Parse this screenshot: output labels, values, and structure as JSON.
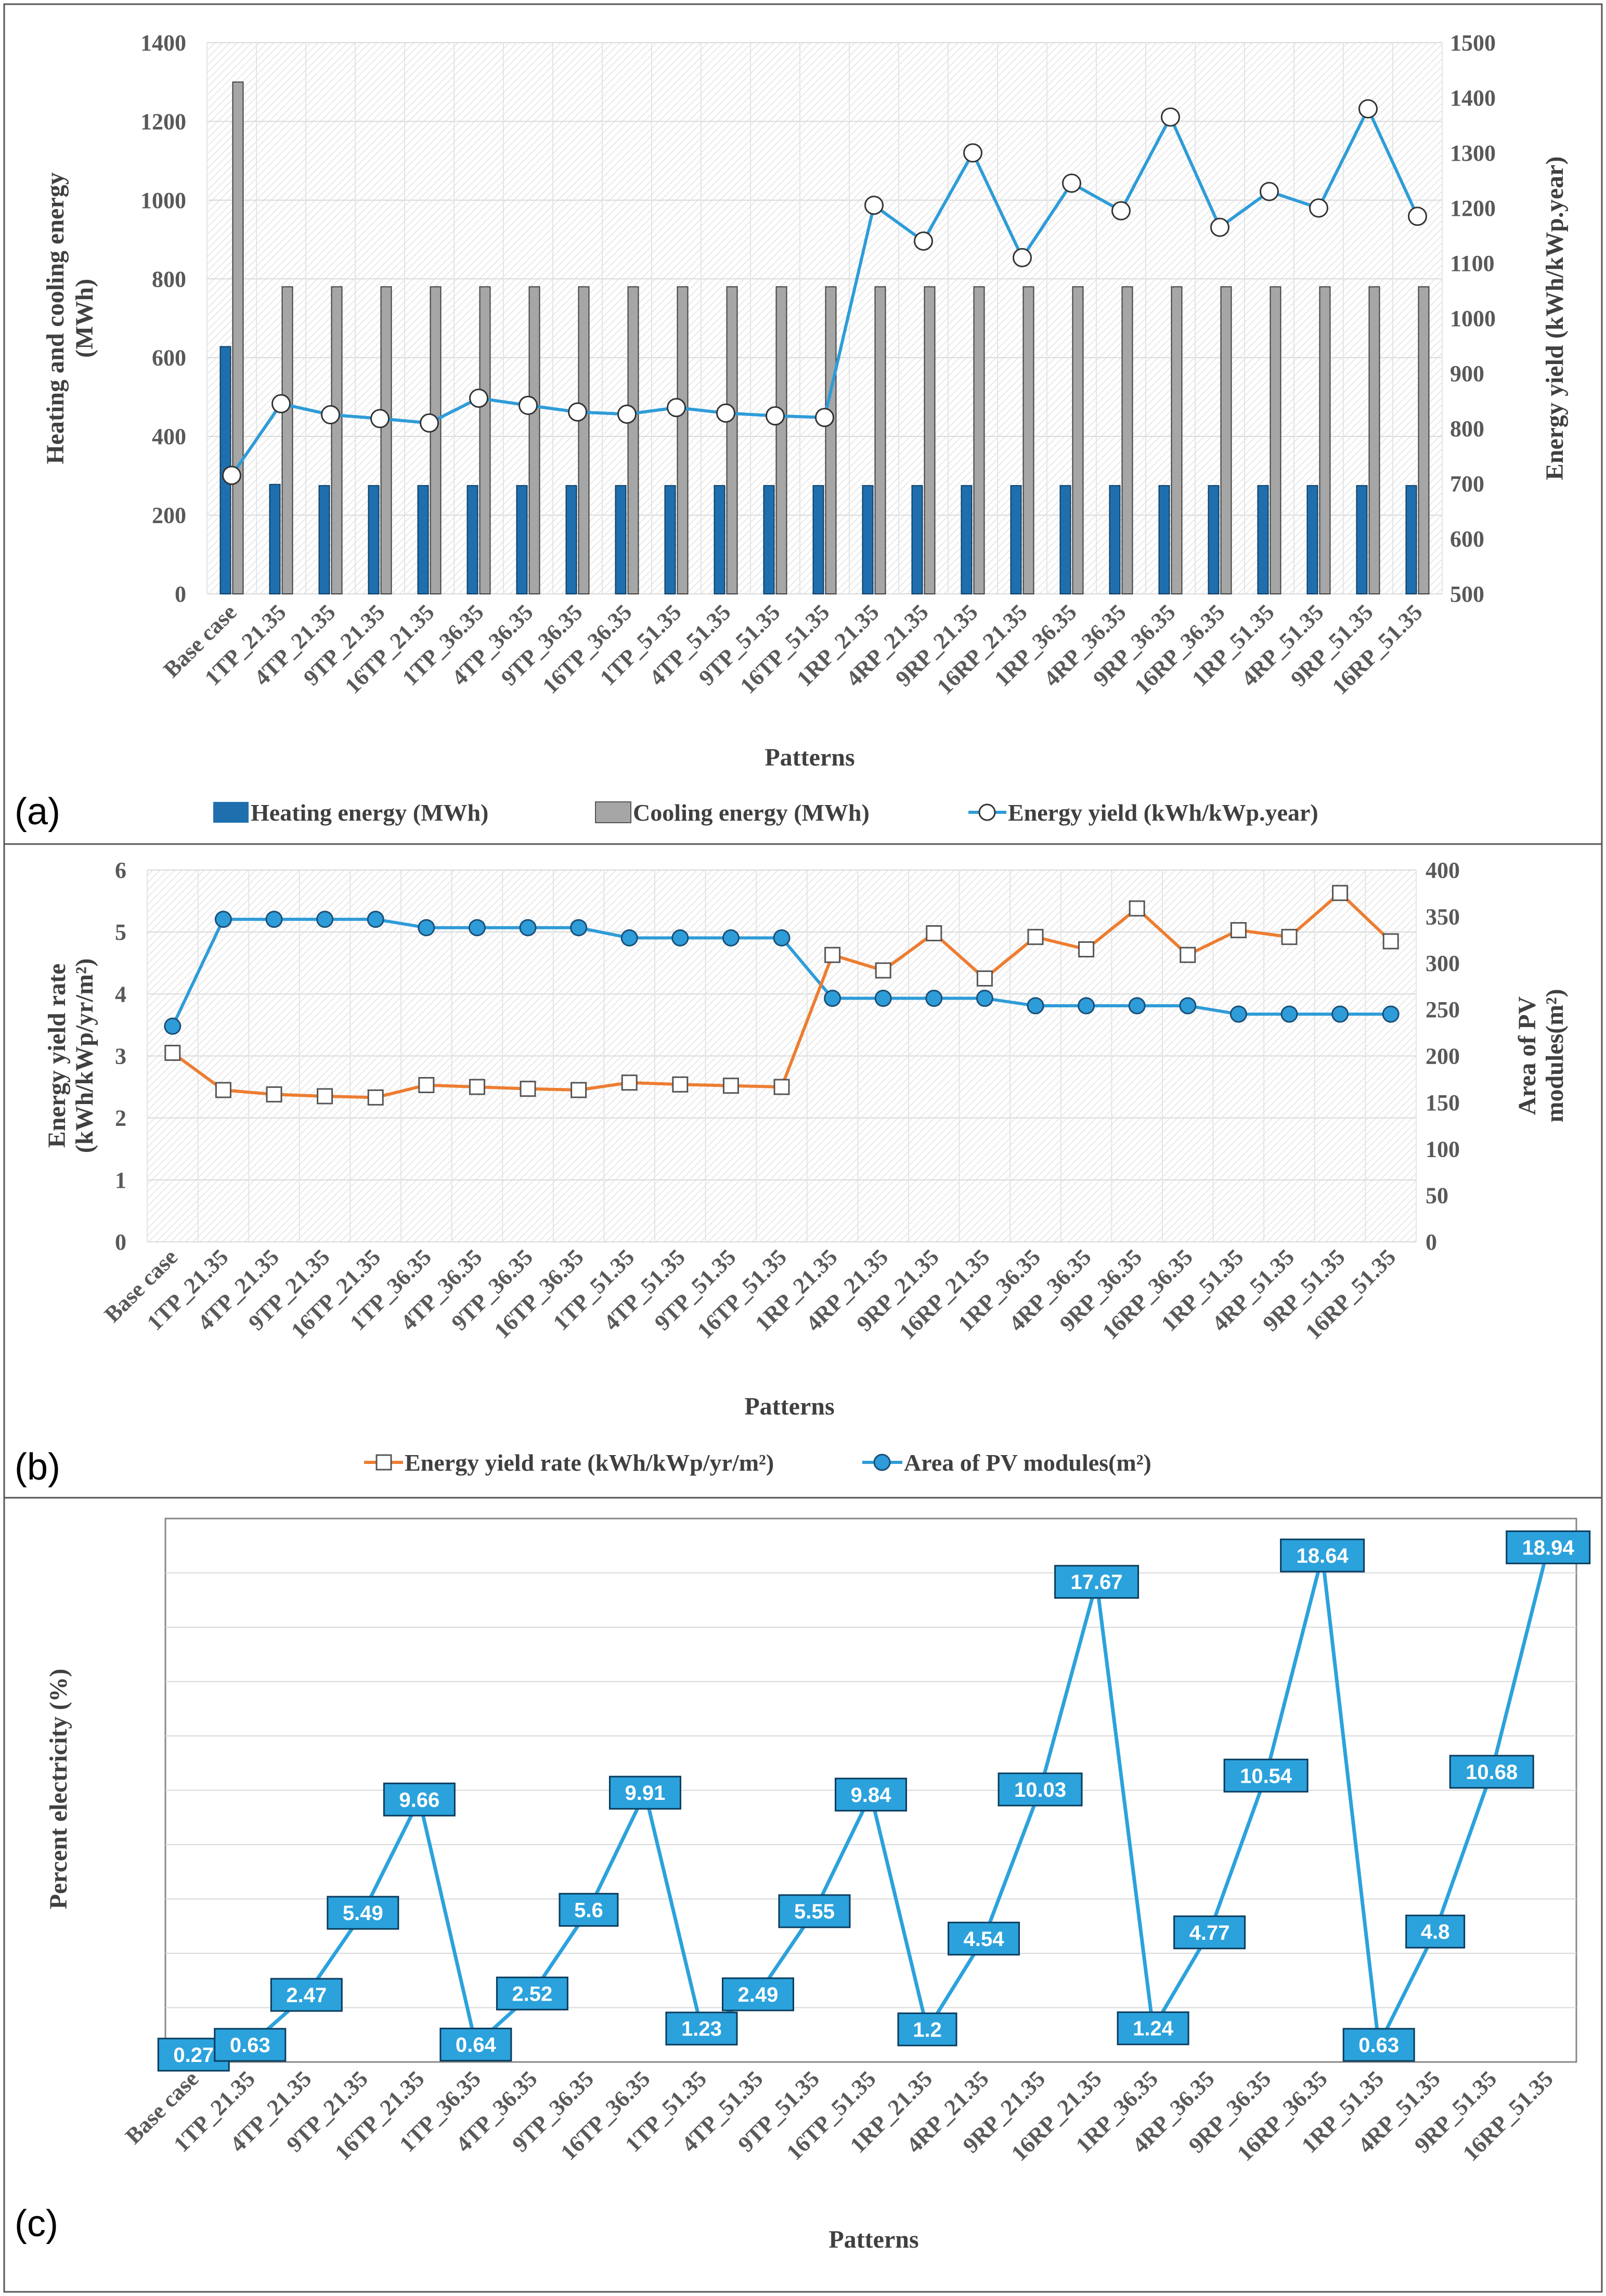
{
  "colors": {
    "heating": "#1f6fae",
    "cooling": "#a6a6a6",
    "yield_line": "#2e9cd8",
    "rate_line": "#ed7d31",
    "area_line": "#2e9cd8",
    "label_box": "#2ba2dc"
  },
  "patterns": [
    "Base case",
    "1TP_21.35",
    "4TP_21.35",
    "9TP_21.35",
    "16TP_21.35",
    "1TP_36.35",
    "4TP_36.35",
    "9TP_36.35",
    "16TP_36.35",
    "1TP_51.35",
    "4TP_51.35",
    "9TP_51.35",
    "16TP_51.35",
    "1RP_21.35",
    "4RP_21.35",
    "9RP_21.35",
    "16RP_21.35",
    "1RP_36.35",
    "4RP_36.35",
    "9RP_36.35",
    "16RP_36.35",
    "1RP_51.35",
    "4RP_51.35",
    "9RP_51.35",
    "16RP_51.35"
  ],
  "chart_data": [
    {
      "id": "a",
      "panel_label": "(a)",
      "type": "bar",
      "xlabel": "Patterns",
      "ylabel_lines": [
        "Heating and cooling energy",
        "(MWh)"
      ],
      "y2label": "Energy yield (kWh/kWp.year)",
      "ylim": [
        0,
        1400
      ],
      "yticks": [
        0,
        200,
        400,
        600,
        800,
        1000,
        1200,
        1400
      ],
      "y2lim": [
        500,
        1500
      ],
      "y2ticks": [
        500,
        600,
        700,
        800,
        900,
        1000,
        1100,
        1200,
        1300,
        1400,
        1500
      ],
      "series": [
        {
          "name": "Heating energy (MWh)",
          "type": "bar",
          "axis": "left",
          "values": [
            628,
            278,
            275,
            275,
            275,
            275,
            275,
            275,
            275,
            275,
            275,
            275,
            275,
            275,
            275,
            275,
            275,
            275,
            275,
            275,
            275,
            275,
            275,
            275,
            275
          ]
        },
        {
          "name": "Cooling energy (MWh)",
          "type": "bar",
          "axis": "left",
          "values": [
            1300,
            780,
            780,
            780,
            780,
            780,
            780,
            780,
            780,
            780,
            780,
            780,
            780,
            780,
            780,
            780,
            780,
            780,
            780,
            780,
            780,
            780,
            780,
            780,
            780
          ]
        },
        {
          "name": "Energy yield (kWh/kWp.year)",
          "type": "line",
          "axis": "right",
          "values": [
            715,
            845,
            825,
            818,
            810,
            855,
            842,
            830,
            826,
            838,
            828,
            823,
            820,
            1205,
            1140,
            1300,
            1110,
            1245,
            1195,
            1365,
            1165,
            1230,
            1200,
            1380,
            1185
          ]
        }
      ]
    },
    {
      "id": "b",
      "panel_label": "(b)",
      "type": "line",
      "xlabel": "Patterns",
      "ylabel_lines": [
        "Energy yield rate",
        "(kWh/kWp/yr/m²)"
      ],
      "y2label_lines": [
        "Area of PV",
        "modules(m²)"
      ],
      "ylim": [
        0,
        6
      ],
      "yticks": [
        0,
        1,
        2,
        3,
        4,
        5,
        6
      ],
      "y2lim": [
        0,
        400
      ],
      "y2ticks": [
        0,
        50,
        100,
        150,
        200,
        250,
        300,
        350,
        400
      ],
      "series": [
        {
          "name": "Energy yield rate (kWh/kWp/yr/m²)",
          "axis": "left",
          "values": [
            3.05,
            2.45,
            2.38,
            2.35,
            2.33,
            2.53,
            2.5,
            2.47,
            2.45,
            2.57,
            2.54,
            2.52,
            2.5,
            4.63,
            4.38,
            4.98,
            4.25,
            4.92,
            4.72,
            5.38,
            4.63,
            5.03,
            4.92,
            5.63,
            4.85
          ]
        },
        {
          "name": "Area of PV modules(m²)",
          "axis": "right",
          "values": [
            232,
            347,
            347,
            347,
            347,
            338,
            338,
            338,
            338,
            327,
            327,
            327,
            327,
            262,
            262,
            262,
            262,
            254,
            254,
            254,
            254,
            245,
            245,
            245,
            245
          ]
        }
      ]
    },
    {
      "id": "c",
      "panel_label": "(c)",
      "type": "line",
      "xlabel": "Patterns",
      "ylabel": "Percent electricity (%)",
      "ylim": [
        0,
        20
      ],
      "series": [
        {
          "name": "Percent electricity (%)",
          "values": [
            0.27,
            0.63,
            2.47,
            5.49,
            9.66,
            0.64,
            2.52,
            5.6,
            9.91,
            1.23,
            2.49,
            5.55,
            9.84,
            1.2,
            4.54,
            10.03,
            17.67,
            1.24,
            4.77,
            10.54,
            18.64,
            0.63,
            4.8,
            10.68,
            18.94
          ],
          "labels": [
            "0.27",
            "0.63",
            "2.47",
            "5.49",
            "9.66",
            "0.64",
            "2.52",
            "5.6",
            "9.91",
            "1.23",
            "2.49",
            "5.55",
            "9.84",
            "1.2",
            "4.54",
            "10.03",
            "17.67",
            "1.24",
            "4.77",
            "10.54",
            "18.64",
            "0.63",
            "4.8",
            "10.68",
            "18.94"
          ]
        }
      ]
    }
  ]
}
